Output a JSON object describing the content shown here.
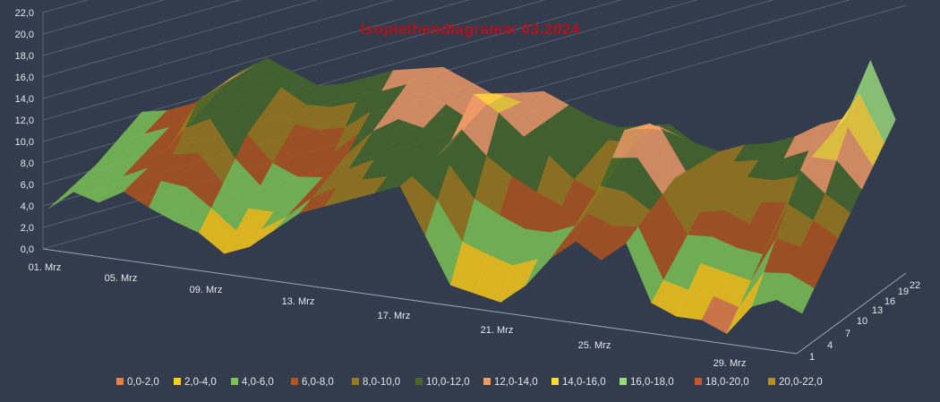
{
  "chart_data": {
    "type": "surface",
    "title": "Isopiethendiagramm 03.2024",
    "y_ticks": [
      "0,0",
      "2,0",
      "4,0",
      "6,0",
      "8,0",
      "10,0",
      "12,0",
      "14,0",
      "16,0",
      "18,0",
      "20,0",
      "22,0"
    ],
    "ylim": [
      0,
      22
    ],
    "x_tick_labels": [
      "01. Mrz",
      "05. Mrz",
      "09. Mrz",
      "13. Mrz",
      "17. Mrz",
      "21. Mrz",
      "25. Mrz",
      "29. Mrz"
    ],
    "z_tick_labels": [
      "1",
      "4",
      "7",
      "10",
      "13",
      "16",
      "19",
      "22"
    ],
    "legend": [
      {
        "label": "0,0-2,0",
        "color": "#e8804a"
      },
      {
        "label": "2,0-4,0",
        "color": "#ffcd1a"
      },
      {
        "label": "4,0-6,0",
        "color": "#7cc456"
      },
      {
        "label": "6,0-8,0",
        "color": "#b2531c"
      },
      {
        "label": "8,0-10,0",
        "color": "#9c7a1a"
      },
      {
        "label": "10,0-12,0",
        "color": "#46662a"
      },
      {
        "label": "12,0-14,0",
        "color": "#f09a66"
      },
      {
        "label": "14,0-16,0",
        "color": "#ffd93a"
      },
      {
        "label": "16,0-18,0",
        "color": "#9ad97c"
      },
      {
        "label": "18,0-20,0",
        "color": "#c65a1e"
      },
      {
        "label": "20,0-22,0",
        "color": "#b59020"
      }
    ],
    "series_front": [
      3.5,
      5.5,
      4.8,
      6.2,
      5.0,
      4.0,
      3.2,
      1.5,
      2.5,
      4.5,
      6.5,
      7.5,
      8.5,
      9.5,
      10.5,
      6.0,
      1.5,
      1.0,
      0.5,
      2.5,
      5.5,
      7.5,
      6.0,
      8.0,
      2.5,
      1.5,
      1.5,
      0.5,
      3.5,
      4.5,
      3.5
    ],
    "series_mid": [
      4.0,
      5.0,
      6.0,
      7.0,
      11.5,
      13.5,
      9.0,
      6.5,
      5.5,
      5.8,
      8.5,
      11.0,
      12.5,
      12.0,
      10.5,
      16.0,
      14.5,
      12.5,
      11.0,
      9.0,
      8.0,
      14.5,
      15.5,
      10.5,
      7.5,
      8.0,
      7.0,
      7.0,
      13.0,
      11.0,
      9.5
    ],
    "series_back": [
      5.5,
      6.0,
      7.0,
      8.5,
      11.0,
      12.5,
      11.5,
      10.5,
      11.0,
      12.0,
      13.0,
      13.5,
      14.0,
      13.0,
      12.0,
      12.5,
      13.0,
      12.0,
      11.0,
      10.5,
      11.0,
      11.5,
      10.0,
      9.5,
      10.5,
      11.0,
      12.0,
      13.5,
      14.5,
      20.5,
      15.0
    ]
  }
}
